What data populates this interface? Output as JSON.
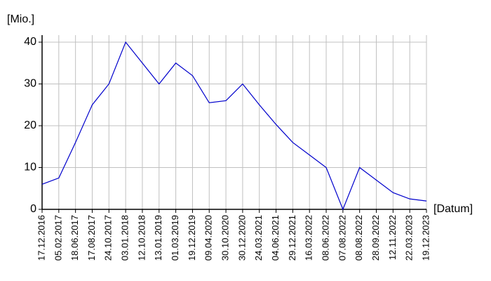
{
  "chart_data": {
    "type": "line",
    "y_label": "[Mio.]",
    "x_label": "[Datum]",
    "categories": [
      "17.12.2016",
      "05.02.2017",
      "18.06.2017",
      "17.08.2017",
      "24.10.2017",
      "03.01.2018",
      "12.10.2018",
      "13.01.2019",
      "01.03.2019",
      "19.12.2019",
      "09.04.2020",
      "30.10.2020",
      "30.12.2020",
      "24.03.2021",
      "04.06.2021",
      "29.12.2021",
      "16.03.2022",
      "08.06.2022",
      "07.08.2022",
      "08.08.2022",
      "28.09.2022",
      "12.11.2022",
      "22.03.2023",
      "19.12.2023"
    ],
    "values": [
      6,
      7.5,
      16,
      25,
      30,
      40,
      35,
      30,
      35,
      32,
      25.5,
      26,
      30,
      25,
      20.3,
      16,
      13,
      10,
      0,
      10,
      7,
      4,
      2.5,
      2
    ],
    "color": "#0000cc",
    "ylim": [
      0,
      40
    ],
    "yticks": [
      0,
      10,
      20,
      30,
      40
    ],
    "grid": true
  }
}
